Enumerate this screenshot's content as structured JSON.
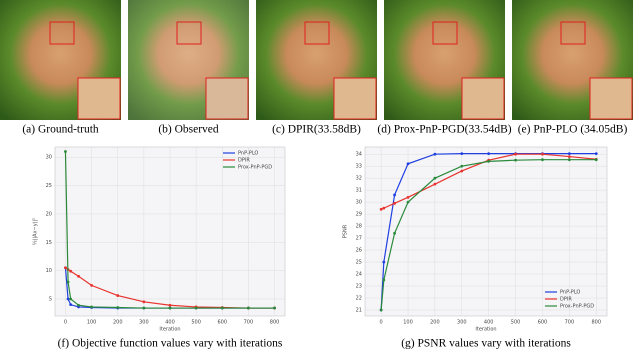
{
  "figures": [
    {
      "caption": "(a) Ground-truth"
    },
    {
      "caption": "(b) Observed"
    },
    {
      "caption": "(c) DPIR(33.58dB)"
    },
    {
      "caption": "(d) Prox-PnP-PGD(33.54dB)"
    },
    {
      "caption": "(e) PnP-PLO (34.05dB)"
    }
  ],
  "chart_data": [
    {
      "type": "line",
      "caption": "(f) Objective function values vary with iterations",
      "xlabel": "Iteration",
      "ylabel": "½||Ax−y||²",
      "x": [
        0,
        10,
        20,
        50,
        100,
        200,
        300,
        400,
        500,
        600,
        700,
        800
      ],
      "xlim": [
        -40,
        840
      ],
      "ylim": [
        2,
        31.8
      ],
      "xticks": [
        0,
        100,
        200,
        300,
        400,
        500,
        600,
        700,
        800
      ],
      "yticks": [
        5,
        10,
        15,
        20,
        25,
        30
      ],
      "legend": "upper-right",
      "series": [
        {
          "name": "PnP-PLO",
          "color": "#1f3fe0",
          "values": [
            10.5,
            5,
            4,
            3.6,
            3.5,
            3.4,
            3.4,
            3.4,
            3.4,
            3.4,
            3.4,
            3.4
          ]
        },
        {
          "name": "DPIR",
          "color": "#e8332e",
          "values": [
            10.5,
            10.2,
            9.9,
            9,
            7.4,
            5.6,
            4.5,
            3.9,
            3.6,
            3.5,
            3.4,
            3.4
          ]
        },
        {
          "name": "Prox-PnP-PGD",
          "color": "#2a8a3a",
          "values": [
            31,
            8,
            5,
            3.9,
            3.6,
            3.5,
            3.4,
            3.4,
            3.4,
            3.4,
            3.4,
            3.4
          ]
        }
      ]
    },
    {
      "type": "line",
      "caption": "(g) PSNR values vary with iterations",
      "xlabel": "Iteration",
      "ylabel": "PSNR",
      "x": [
        0,
        10,
        50,
        100,
        200,
        300,
        400,
        500,
        600,
        700,
        800
      ],
      "xlim": [
        -60,
        840
      ],
      "ylim": [
        20.5,
        34.6
      ],
      "xticks": [
        0,
        100,
        200,
        300,
        400,
        500,
        600,
        700,
        800
      ],
      "yticks": [
        21,
        22,
        23,
        24,
        25,
        26,
        27,
        28,
        29,
        30,
        31,
        32,
        33,
        34
      ],
      "legend": "lower-right",
      "series": [
        {
          "name": "PnP-PLO",
          "color": "#1f3fe0",
          "values": [
            21,
            25,
            30.6,
            33.2,
            34,
            34.05,
            34.05,
            34.05,
            34.05,
            34.05,
            34.05
          ]
        },
        {
          "name": "DPIR",
          "color": "#e8332e",
          "values": [
            29.4,
            29.5,
            29.9,
            30.4,
            31.5,
            32.6,
            33.5,
            34,
            34,
            33.8,
            33.58
          ]
        },
        {
          "name": "Prox-PnP-PGD",
          "color": "#2a8a3a",
          "values": [
            21,
            23.5,
            27.4,
            30,
            32,
            33,
            33.4,
            33.5,
            33.54,
            33.54,
            33.54
          ]
        }
      ]
    }
  ]
}
